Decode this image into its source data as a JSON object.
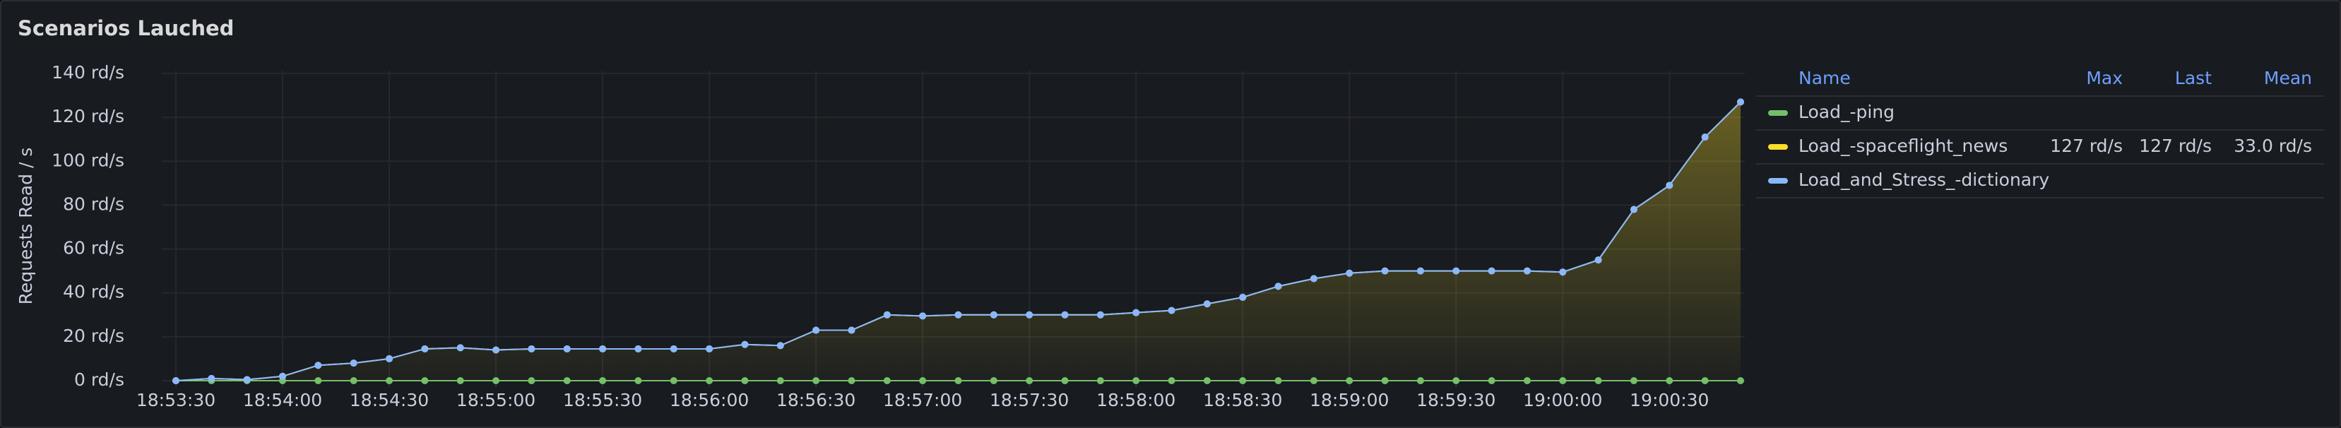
{
  "chart_data": {
    "type": "line",
    "title": "Scenarios Lauched",
    "y_label": "Requests Read / s",
    "categories": [
      "18:53:30",
      null,
      null,
      "18:54:00",
      null,
      null,
      "18:54:30",
      null,
      null,
      "18:55:00",
      null,
      null,
      "18:55:30",
      null,
      null,
      "18:56:00",
      null,
      null,
      "18:56:30",
      null,
      null,
      "18:57:00",
      null,
      null,
      "18:57:30",
      null,
      null,
      "18:58:00",
      null,
      null,
      "18:58:30",
      null,
      null,
      "18:59:00",
      null,
      null,
      "18:59:30",
      null,
      null,
      "19:00:00",
      null,
      null,
      "19:00:30",
      null,
      null
    ],
    "ylim": [
      0,
      140
    ],
    "yticks": [
      {
        "value": 0,
        "label": "0 rd/s"
      },
      {
        "value": 20,
        "label": "20 rd/s"
      },
      {
        "value": 40,
        "label": "40 rd/s"
      },
      {
        "value": 60,
        "label": "60 rd/s"
      },
      {
        "value": 80,
        "label": "80 rd/s"
      },
      {
        "value": 100,
        "label": "100 rd/s"
      },
      {
        "value": 120,
        "label": "120 rd/s"
      },
      {
        "value": 140,
        "label": "140 rd/s"
      }
    ],
    "grid": true,
    "legend": {
      "position": "right",
      "columns": [
        "Name",
        "Max",
        "Last",
        "Mean"
      ]
    },
    "series": [
      {
        "name": "Load_-ping",
        "color": "#73bf69",
        "stats": [
          null,
          null,
          null
        ],
        "values": [
          0,
          0,
          0,
          0,
          0,
          0,
          0,
          0,
          0,
          0,
          0,
          0,
          0,
          0,
          0,
          0,
          0,
          0,
          0,
          0,
          0,
          0,
          0,
          0,
          0,
          0,
          0,
          0,
          0,
          0,
          0,
          0,
          0,
          0,
          0,
          0,
          0,
          0,
          0,
          0,
          0,
          0,
          0,
          0,
          0
        ]
      },
      {
        "name": "Load_-spaceflight_news",
        "color": "#fade2a",
        "fill": true,
        "stats": [
          "127 rd/s",
          "127 rd/s",
          "33.0 rd/s"
        ],
        "values": [
          0,
          1,
          0.5,
          2,
          7,
          8,
          10,
          14.5,
          15,
          14,
          14.5,
          14.5,
          14.5,
          14.5,
          14.5,
          14.5,
          16.5,
          16,
          23,
          23,
          30,
          29.5,
          30,
          30,
          30,
          30,
          30,
          31,
          32,
          35,
          38,
          43,
          46.5,
          49,
          50,
          50,
          50,
          50,
          50,
          49.5,
          55,
          78,
          89,
          111,
          127
        ]
      },
      {
        "name": "Load_and_Stress_-dictionary",
        "color": "#8ab8ff",
        "stats": [
          null,
          null,
          null
        ],
        "values": [
          0,
          1,
          0.5,
          2,
          7,
          8,
          10,
          14.5,
          15,
          14,
          14.5,
          14.5,
          14.5,
          14.5,
          14.5,
          14.5,
          16.5,
          16,
          23,
          23,
          30,
          29.5,
          30,
          30,
          30,
          30,
          30,
          31,
          32,
          35,
          38,
          43,
          46.5,
          49,
          50,
          50,
          50,
          50,
          50,
          49.5,
          55,
          78,
          89,
          111,
          127
        ]
      }
    ]
  }
}
